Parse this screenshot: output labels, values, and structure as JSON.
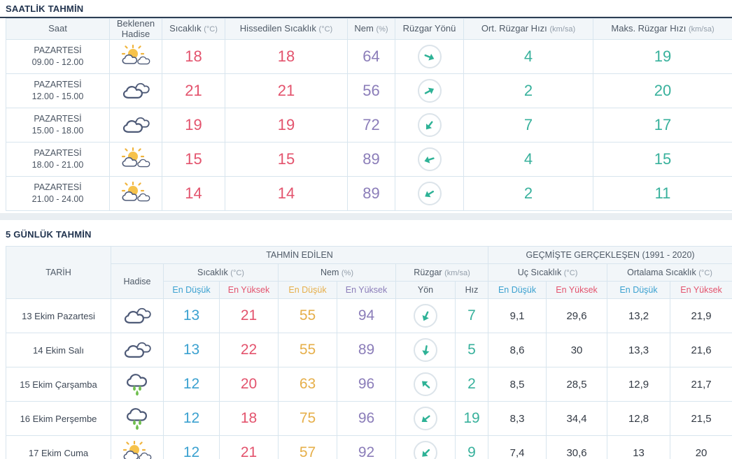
{
  "colors": {
    "accent_red": "#e3536d",
    "accent_purple": "#8b7db9",
    "accent_teal": "#38b19c",
    "accent_blue": "#3ba1d0",
    "accent_orange": "#e6af4a",
    "title_navy": "#22344f",
    "border": "#d8e5ee"
  },
  "hourly": {
    "section_title": "SAATLİK TAHMİN",
    "columns": [
      {
        "label": "Saat",
        "unit": ""
      },
      {
        "label": "Beklenen Hadise",
        "unit": ""
      },
      {
        "label": "Sıcaklık",
        "unit": "(°C)"
      },
      {
        "label": "Hissedilen Sıcaklık",
        "unit": "(°C)"
      },
      {
        "label": "Nem",
        "unit": "(%)"
      },
      {
        "label": "Rüzgar Yönü",
        "unit": ""
      },
      {
        "label": "Ort. Rüzgar Hızı",
        "unit": "(km/sa)"
      },
      {
        "label": "Maks. Rüzgar Hızı",
        "unit": "(km/sa)"
      }
    ],
    "rows": [
      {
        "day": "PAZARTESİ",
        "time": "09.00 - 12.00",
        "icon": "sun-clouds",
        "temp": "18",
        "feels": "18",
        "humidity": "64",
        "wind_dir_deg": 22,
        "wind_avg": "4",
        "wind_max": "19"
      },
      {
        "day": "PAZARTESİ",
        "time": "12.00 - 15.00",
        "icon": "clouds",
        "temp": "21",
        "feels": "21",
        "humidity": "56",
        "wind_dir_deg": -28,
        "wind_avg": "2",
        "wind_max": "20"
      },
      {
        "day": "PAZARTESİ",
        "time": "15.00 - 18.00",
        "icon": "clouds",
        "temp": "19",
        "feels": "19",
        "humidity": "72",
        "wind_dir_deg": 128,
        "wind_avg": "7",
        "wind_max": "17"
      },
      {
        "day": "PAZARTESİ",
        "time": "18.00 - 21.00",
        "icon": "sun-clouds",
        "temp": "15",
        "feels": "15",
        "humidity": "89",
        "wind_dir_deg": 162,
        "wind_avg": "4",
        "wind_max": "15"
      },
      {
        "day": "PAZARTESİ",
        "time": "21.00 - 24.00",
        "icon": "sun-clouds",
        "temp": "14",
        "feels": "14",
        "humidity": "89",
        "wind_dir_deg": 148,
        "wind_avg": "2",
        "wind_max": "11"
      }
    ]
  },
  "daily": {
    "section_title": "5 GÜNLÜK TAHMİN",
    "header": {
      "date": "TARİH",
      "condition": "Hadise",
      "predicted": "TAHMİN EDİLEN",
      "past": "GEÇMİŞTE GERÇEKLEŞEN (1991 - 2020)",
      "temp": {
        "label": "Sıcaklık",
        "unit": "(°C)"
      },
      "humidity": {
        "label": "Nem",
        "unit": "(%)"
      },
      "wind": {
        "label": "Rüzgar",
        "unit": "(km/sa)"
      },
      "extreme": {
        "label": "Uç Sıcaklık",
        "unit": "(°C)"
      },
      "average": {
        "label": "Ortalama Sıcaklık",
        "unit": "(°C)"
      },
      "min": "En Düşük",
      "max": "En Yüksek",
      "dir": "Yön",
      "speed": "Hız"
    },
    "rows": [
      {
        "date": "13 Ekim Pazartesi",
        "icon": "clouds",
        "tmin": "13",
        "tmax": "21",
        "hmin": "55",
        "hmax": "94",
        "wind_dir_deg": 115,
        "wind_speed": "7",
        "ext_min": "9,1",
        "ext_max": "29,6",
        "avg_min": "13,2",
        "avg_max": "21,9"
      },
      {
        "date": "14 Ekim Salı",
        "icon": "clouds",
        "tmin": "13",
        "tmax": "22",
        "hmin": "55",
        "hmax": "89",
        "wind_dir_deg": 100,
        "wind_speed": "5",
        "ext_min": "8,6",
        "ext_max": "30",
        "avg_min": "13,3",
        "avg_max": "21,6"
      },
      {
        "date": "15 Ekim Çarşamba",
        "icon": "rain",
        "tmin": "12",
        "tmax": "20",
        "hmin": "63",
        "hmax": "96",
        "wind_dir_deg": -138,
        "wind_speed": "2",
        "ext_min": "8,5",
        "ext_max": "28,5",
        "avg_min": "12,9",
        "avg_max": "21,7"
      },
      {
        "date": "16 Ekim Perşembe",
        "icon": "rain",
        "tmin": "12",
        "tmax": "18",
        "hmin": "75",
        "hmax": "96",
        "wind_dir_deg": 142,
        "wind_speed": "19",
        "ext_min": "8,3",
        "ext_max": "34,4",
        "avg_min": "12,8",
        "avg_max": "21,5"
      },
      {
        "date": "17 Ekim Cuma",
        "icon": "sun-clouds",
        "tmin": "12",
        "tmax": "21",
        "hmin": "57",
        "hmax": "92",
        "wind_dir_deg": 135,
        "wind_speed": "9",
        "ext_min": "7,4",
        "ext_max": "30,6",
        "avg_min": "13",
        "avg_max": "20"
      }
    ]
  }
}
